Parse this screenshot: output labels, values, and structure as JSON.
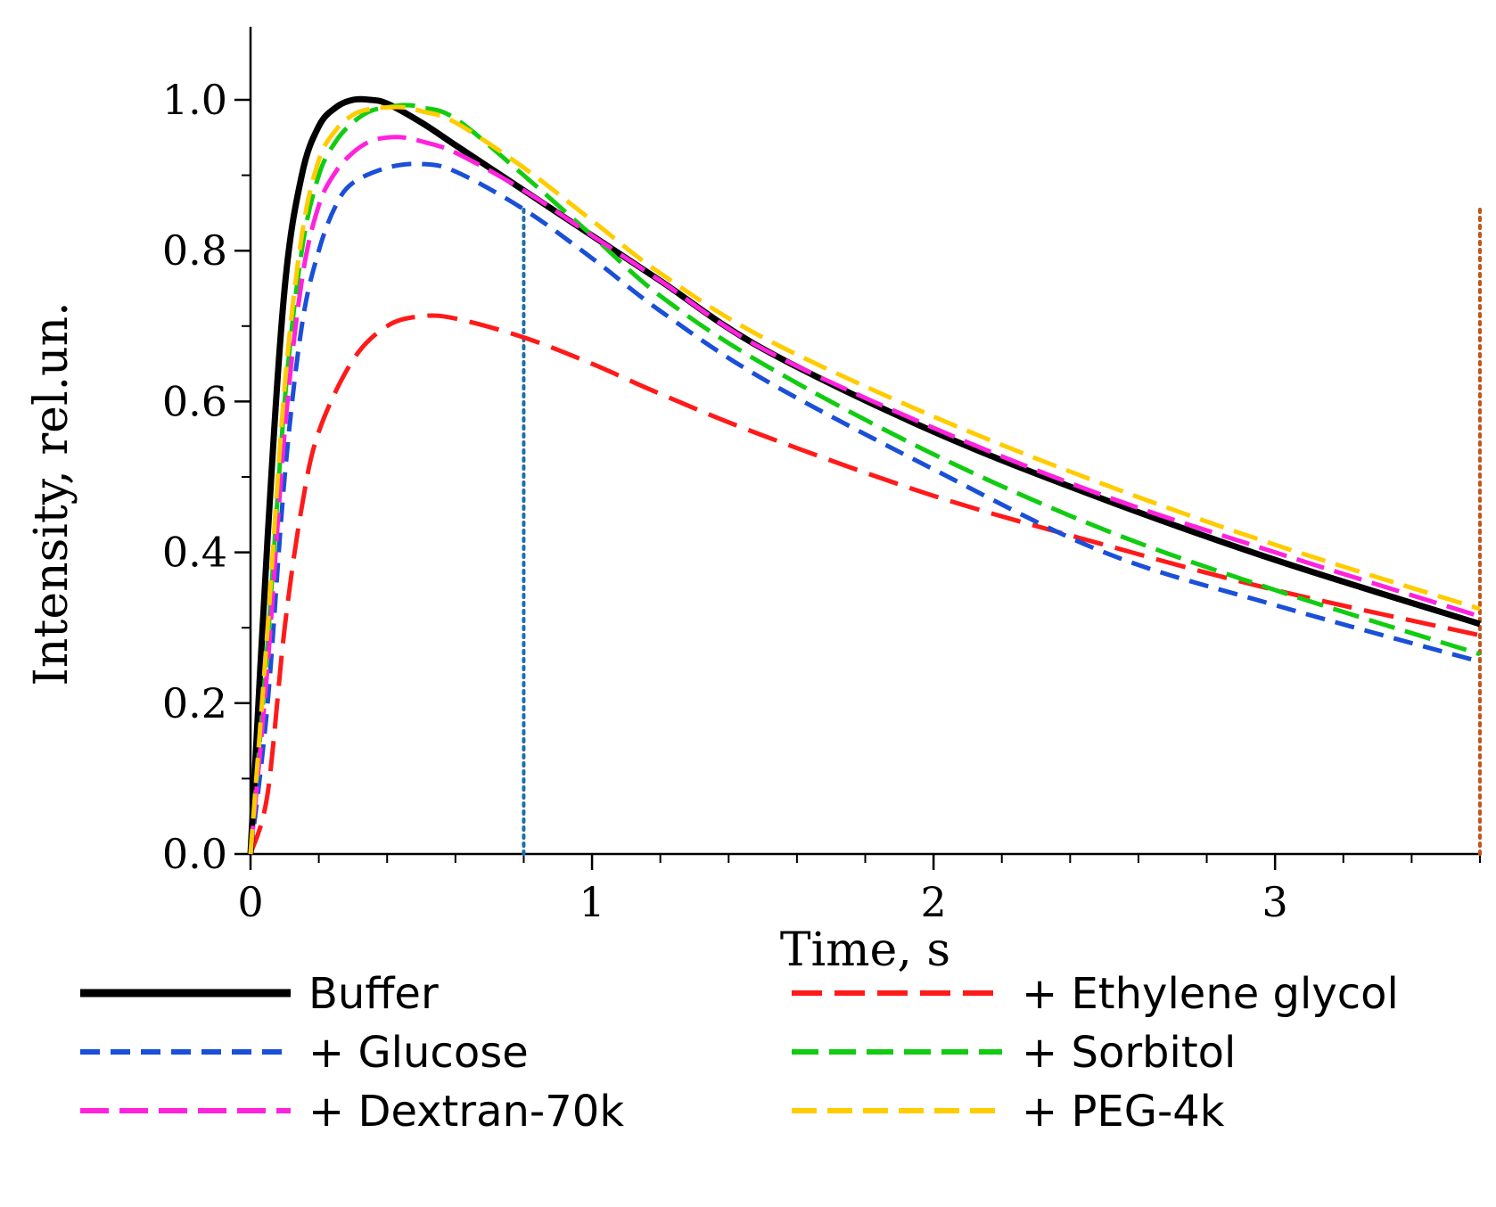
{
  "chart_data": {
    "type": "line",
    "title": "",
    "xlabel": "Time, s",
    "ylabel": "Intensity, rel.un.",
    "xlim": [
      0,
      3.6
    ],
    "ylim": [
      0,
      1.1
    ],
    "x_ticks": [
      0,
      1,
      2,
      3
    ],
    "x_tick_labels": [
      "0",
      "1",
      "2",
      "3"
    ],
    "y_ticks": [
      0.0,
      0.2,
      0.4,
      0.6,
      0.8,
      1.0
    ],
    "y_tick_labels": [
      "0.0",
      "0.2",
      "0.4",
      "0.6",
      "0.8",
      "1.0"
    ],
    "x_minor_step": 0.2,
    "y_minor_step": 0.1,
    "grid": false,
    "legend_position": "bottom",
    "vlines": [
      {
        "x": 0.8,
        "color": "#1f6fa8",
        "style": "dotted"
      },
      {
        "x": 3.6,
        "color": "#c0561c",
        "style": "dotted"
      }
    ],
    "series": [
      {
        "name": "Buffer",
        "color": "#000000",
        "style": "solid",
        "x": [
          0,
          0.05,
          0.1,
          0.15,
          0.2,
          0.25,
          0.3,
          0.35,
          0.4,
          0.5,
          0.6,
          0.8,
          1.0,
          1.2,
          1.5,
          2.0,
          2.5,
          3.0,
          3.6
        ],
        "values": [
          0,
          0.42,
          0.75,
          0.9,
          0.965,
          0.99,
          1.0,
          1.0,
          0.995,
          0.97,
          0.94,
          0.88,
          0.82,
          0.76,
          0.67,
          0.56,
          0.47,
          0.39,
          0.305
        ]
      },
      {
        "name": "+ Ethylene glycol",
        "color": "#ff1a1a",
        "style": "dashed",
        "x": [
          0,
          0.05,
          0.1,
          0.15,
          0.2,
          0.3,
          0.4,
          0.5,
          0.6,
          0.8,
          1.0,
          1.2,
          1.5,
          2.0,
          2.5,
          3.0,
          3.6
        ],
        "values": [
          0,
          0.08,
          0.3,
          0.46,
          0.56,
          0.655,
          0.7,
          0.713,
          0.71,
          0.685,
          0.65,
          0.61,
          0.555,
          0.475,
          0.41,
          0.35,
          0.29
        ]
      },
      {
        "name": "+ Glucose",
        "color": "#1a4fd8",
        "style": "dashed",
        "x": [
          0,
          0.05,
          0.1,
          0.15,
          0.2,
          0.25,
          0.3,
          0.4,
          0.5,
          0.6,
          0.8,
          1.0,
          1.2,
          1.5,
          2.0,
          2.5,
          3.0,
          3.6
        ],
        "values": [
          0,
          0.2,
          0.5,
          0.7,
          0.8,
          0.86,
          0.89,
          0.91,
          0.915,
          0.905,
          0.855,
          0.79,
          0.72,
          0.63,
          0.51,
          0.4,
          0.33,
          0.255
        ]
      },
      {
        "name": "+ Sorbitol",
        "color": "#11cc11",
        "style": "dashed",
        "x": [
          0,
          0.05,
          0.1,
          0.15,
          0.2,
          0.25,
          0.3,
          0.35,
          0.4,
          0.45,
          0.5,
          0.6,
          0.8,
          1.0,
          1.2,
          1.5,
          2.0,
          2.5,
          3.0,
          3.6
        ],
        "values": [
          0,
          0.28,
          0.6,
          0.8,
          0.9,
          0.945,
          0.97,
          0.985,
          0.99,
          0.993,
          0.99,
          0.975,
          0.9,
          0.82,
          0.74,
          0.65,
          0.53,
          0.43,
          0.35,
          0.265
        ]
      },
      {
        "name": "+ Dextran-70k",
        "color": "#ff22dd",
        "style": "dashed",
        "x": [
          0,
          0.05,
          0.1,
          0.15,
          0.2,
          0.25,
          0.3,
          0.35,
          0.4,
          0.45,
          0.5,
          0.6,
          0.8,
          1.0,
          1.2,
          1.5,
          2.0,
          2.5,
          3.0,
          3.6
        ],
        "values": [
          0,
          0.25,
          0.56,
          0.76,
          0.86,
          0.905,
          0.93,
          0.945,
          0.95,
          0.95,
          0.945,
          0.93,
          0.88,
          0.82,
          0.76,
          0.67,
          0.565,
          0.475,
          0.4,
          0.315
        ]
      },
      {
        "name": "+ PEG-4k",
        "color": "#ffcc00",
        "style": "dashed",
        "x": [
          0,
          0.05,
          0.1,
          0.15,
          0.2,
          0.25,
          0.3,
          0.35,
          0.4,
          0.45,
          0.5,
          0.6,
          0.8,
          1.0,
          1.2,
          1.5,
          2.0,
          2.5,
          3.0,
          3.6
        ],
        "values": [
          0,
          0.3,
          0.62,
          0.82,
          0.92,
          0.96,
          0.98,
          0.988,
          0.99,
          0.99,
          0.985,
          0.97,
          0.91,
          0.84,
          0.77,
          0.685,
          0.58,
          0.49,
          0.41,
          0.325
        ]
      }
    ],
    "legend": {
      "columns": 2,
      "entries": [
        "Buffer",
        "+ Ethylene glycol",
        "+ Glucose",
        "+ Sorbitol",
        "+ Dextran-70k",
        "+ PEG-4k"
      ]
    }
  }
}
